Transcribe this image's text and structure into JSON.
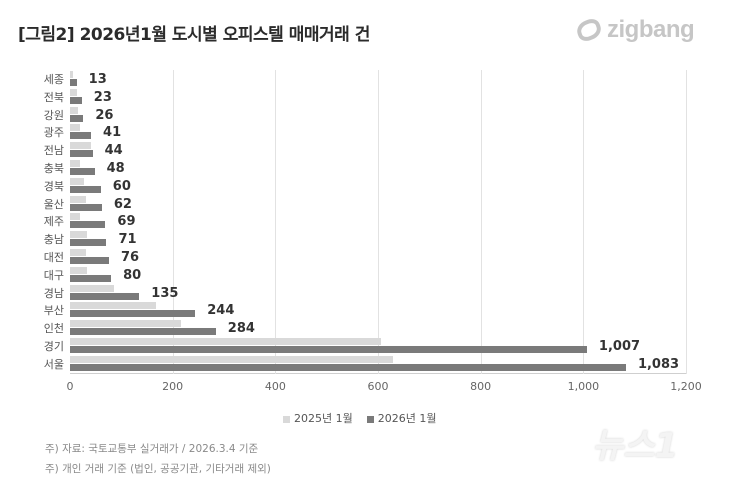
{
  "header": {
    "title": "[그림2] 2026년1월 도시별 오피스텔 매매거래 건",
    "logo_text": "zigbang"
  },
  "legend": [
    {
      "label": "2025년 1월",
      "color": "#d9d9d9"
    },
    {
      "label": "2026년 1월",
      "color": "#7a7a7a"
    }
  ],
  "x_ticks": [
    "0",
    "200",
    "400",
    "600",
    "800",
    "1,000",
    "1,200"
  ],
  "notes": [
    "주) 자료: 국토교통부 실거래가 / 2026.3.4 기준",
    "주) 개인 거래 기준 (법인, 공공기관, 기타거래 제외)"
  ],
  "watermark": "뉴스1",
  "chart_data": {
    "type": "bar",
    "orientation": "horizontal",
    "title": "[그림2] 2026년1월 도시별 오피스텔 매매거래 건",
    "xlabel": "",
    "ylabel": "",
    "xlim": [
      0,
      1200
    ],
    "grid": true,
    "legend_position": "bottom",
    "categories": [
      "세종",
      "전북",
      "강원",
      "광주",
      "전남",
      "충북",
      "경북",
      "울산",
      "제주",
      "충남",
      "대전",
      "대구",
      "경남",
      "부산",
      "인천",
      "경기",
      "서울"
    ],
    "series": [
      {
        "name": "2025년 1월",
        "values": [
          6,
          14,
          16,
          20,
          40,
          20,
          28,
          32,
          20,
          34,
          32,
          33,
          85,
          167,
          216,
          605,
          630
        ]
      },
      {
        "name": "2026년 1월",
        "values": [
          13,
          23,
          26,
          41,
          44,
          48,
          60,
          62,
          69,
          71,
          76,
          80,
          135,
          244,
          284,
          1007,
          1083
        ]
      }
    ],
    "data_labels": [
      "13",
      "23",
      "26",
      "41",
      "44",
      "48",
      "60",
      "62",
      "69",
      "71",
      "76",
      "80",
      "135",
      "244",
      "284",
      "1,007",
      "1,083"
    ]
  }
}
